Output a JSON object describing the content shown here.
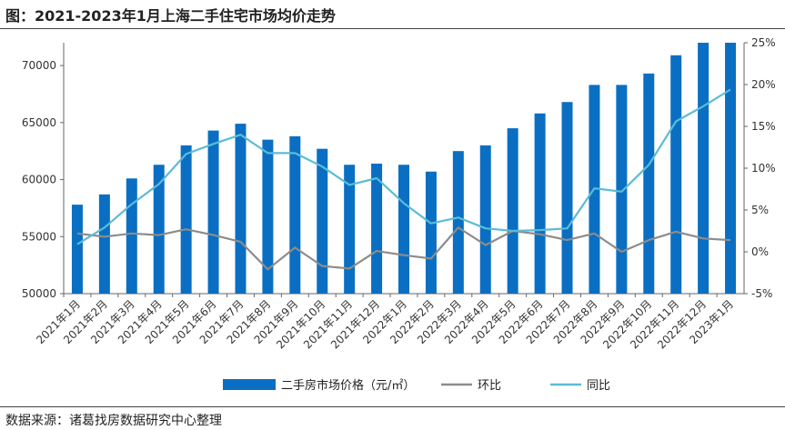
{
  "title": "图：2021-2023年1月上海二手住宅市场均价走势",
  "source": "数据来源：诸葛找房数据研究中心整理",
  "chart_data": {
    "type": "bar",
    "categories": [
      "2021年1月",
      "2021年2月",
      "2021年3月",
      "2021年4月",
      "2021年5月",
      "2021年6月",
      "2021年7月",
      "2021年8月",
      "2021年9月",
      "2021年10月",
      "2021年11月",
      "2021年12月",
      "2022年1月",
      "2022年2月",
      "2022年3月",
      "2022年4月",
      "2022年5月",
      "2022年6月",
      "2022年7月",
      "2022年8月",
      "2022年9月",
      "2022年10月",
      "2022年11月",
      "2022年12月",
      "2023年1月"
    ],
    "series": [
      {
        "name": "二手房市场价格（元/㎡）",
        "type": "bar",
        "axis": "left",
        "color": "#0a6fc2",
        "values": [
          57800,
          58700,
          60100,
          61300,
          63000,
          64300,
          64900,
          63500,
          63800,
          62700,
          61300,
          61400,
          61300,
          60700,
          62500,
          63000,
          64500,
          65800,
          66800,
          68300,
          68300,
          69300,
          70900,
          72000,
          72000
        ]
      },
      {
        "name": "环比",
        "type": "line",
        "axis": "right",
        "color": "#8c8c8c",
        "values": [
          2.2,
          1.8,
          2.2,
          2.0,
          2.7,
          2.0,
          1.2,
          -2.1,
          0.5,
          -1.7,
          -2.0,
          0.1,
          -0.4,
          -0.8,
          2.9,
          0.8,
          2.5,
          2.1,
          1.4,
          2.2,
          0.0,
          1.4,
          2.4,
          1.6,
          1.4
        ]
      },
      {
        "name": "同比",
        "type": "line",
        "axis": "right",
        "color": "#5bbcd6",
        "values": [
          0.9,
          2.9,
          5.7,
          8.1,
          11.7,
          12.9,
          14.0,
          11.8,
          11.8,
          10.2,
          8.0,
          8.8,
          5.8,
          3.4,
          4.1,
          2.8,
          2.5,
          2.6,
          2.8,
          7.6,
          7.2,
          10.4,
          15.6,
          17.4,
          19.4
        ]
      }
    ],
    "ylim_left": [
      50000,
      72000
    ],
    "yticks_left": [
      "50000",
      "55000",
      "60000",
      "65000",
      "70000"
    ],
    "ylim_right": [
      -5,
      25
    ],
    "yticks_right": [
      "-5%",
      "0%",
      "5%",
      "10%",
      "15%",
      "20%",
      "25%"
    ],
    "legend_position": "bottom",
    "grid": false
  }
}
